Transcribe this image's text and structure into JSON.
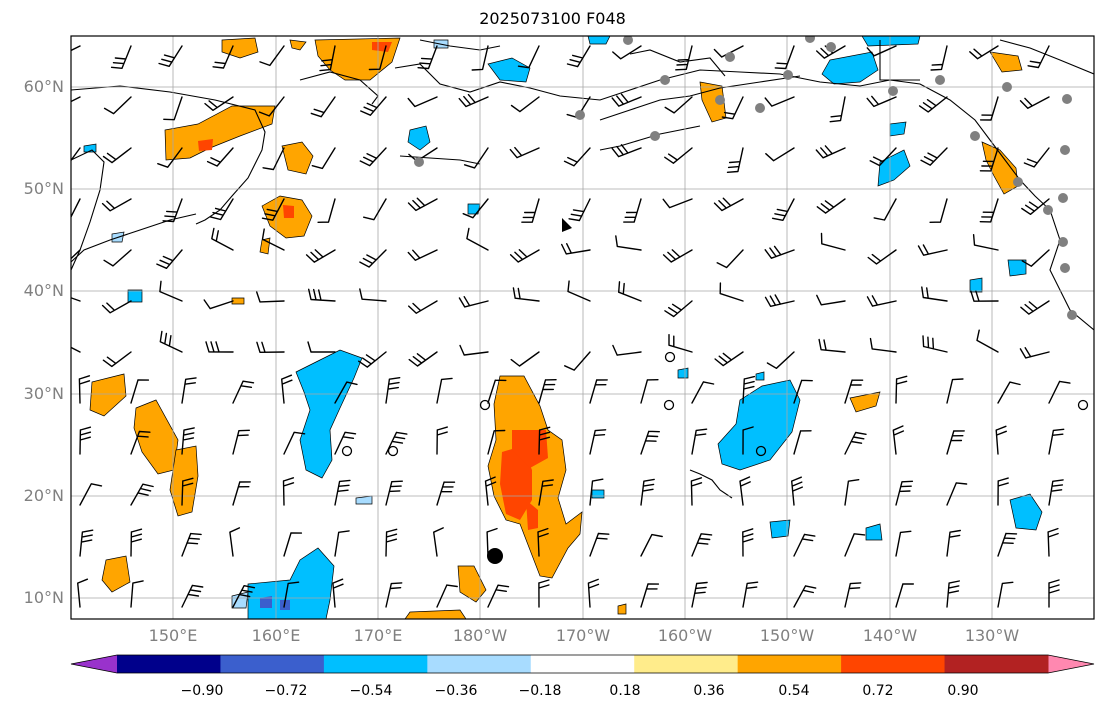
{
  "title": "2025073100 F048",
  "map": {
    "lat_labels": [
      "60°N",
      "50°N",
      "40°N",
      "30°N",
      "20°N",
      "10°N"
    ],
    "lon_labels": [
      "150°E",
      "160°E",
      "170°E",
      "180°W",
      "170°W",
      "160°W",
      "150°W",
      "140°W",
      "130°W"
    ],
    "lon_range": [
      140,
      240
    ],
    "lat_range": [
      8,
      65
    ],
    "gridlines": true,
    "wind_barbs": true,
    "coastlines": true
  },
  "colorbar": {
    "tick_labels": [
      "−0.90",
      "−0.72",
      "−0.54",
      "−0.36",
      "−0.18",
      "0.18",
      "0.36",
      "0.54",
      "0.72",
      "0.90"
    ],
    "colors": [
      "#9932cc",
      "#00008b",
      "#3b5fcd",
      "#00bfff",
      "#a8dcff",
      "#ffffff",
      "#ffec8b",
      "#ffa500",
      "#ff4500",
      "#b22222",
      "#ff88b0"
    ],
    "extend": "both"
  }
}
